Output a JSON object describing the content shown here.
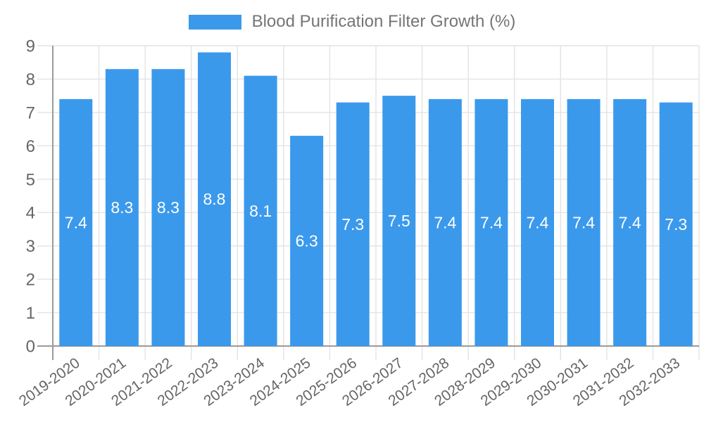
{
  "chart_data": {
    "type": "bar",
    "title": "Blood Purification Filter Growth (%)",
    "categories": [
      "2019-2020",
      "2020-2021",
      "2021-2022",
      "2022-2023",
      "2023-2024",
      "2024-2025",
      "2025-2026",
      "2026-2027",
      "2027-2028",
      "2028-2029",
      "2029-2030",
      "2030-2031",
      "2031-2032",
      "2032-2033"
    ],
    "values": [
      7.4,
      8.3,
      8.3,
      8.8,
      8.1,
      6.3,
      7.3,
      7.5,
      7.4,
      7.4,
      7.4,
      7.4,
      7.4,
      7.3
    ],
    "xlabel": "",
    "ylabel": "",
    "ylim": [
      0,
      9
    ],
    "ytick_step": 1,
    "legend_position": "top",
    "grid": true,
    "bar_color": "#3b99ec",
    "grid_color": "#e3e3e3",
    "axis_color": "#9a9a9a",
    "tick_text_color": "#666666",
    "legend_text_color": "#757575",
    "bar_label_color": "#ffffff"
  }
}
